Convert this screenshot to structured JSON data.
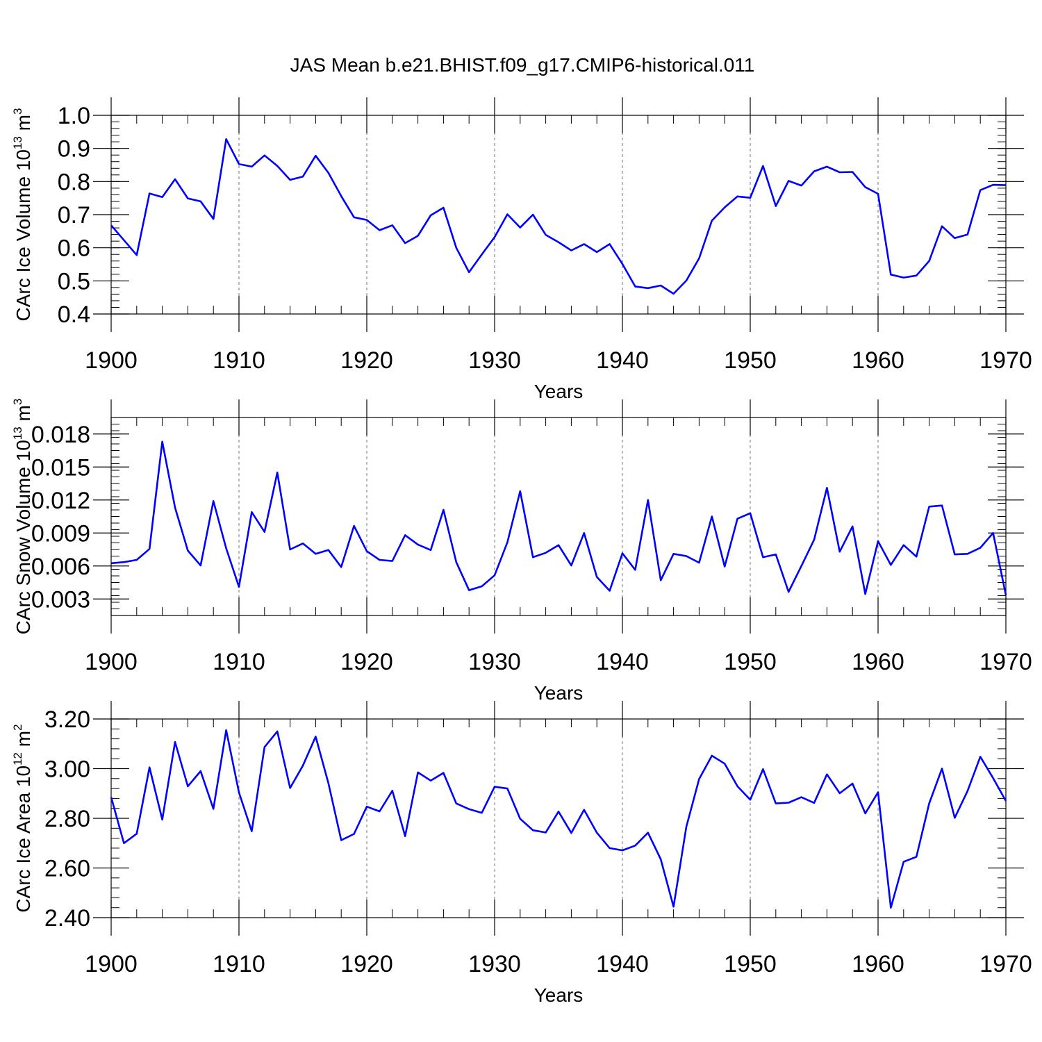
{
  "title": "JAS Mean b.e21.BHIST.f09_g17.CMIP6-historical.011",
  "colors": {
    "line": "#0000ff",
    "axis": "#000000",
    "grid": "#000000"
  },
  "chart_data": [
    {
      "type": "line",
      "xlabel": "Years",
      "ylabel": {
        "text": "CArc Ice Volume 10",
        "exp": "13",
        "unit": " m",
        "unit_exp": "3"
      },
      "xlim": [
        1900,
        1970
      ],
      "ylim": [
        0.4,
        1.0
      ],
      "xticks": [
        1900,
        1910,
        1920,
        1930,
        1940,
        1950,
        1960,
        1970
      ],
      "xtick_labels": [
        "1900",
        "1910",
        "1920",
        "1930",
        "1940",
        "1950",
        "1960",
        "1970"
      ],
      "yticks": [
        0.4,
        0.5,
        0.6,
        0.7,
        0.8,
        0.9,
        1.0
      ],
      "ytick_labels": [
        "0.4",
        "0.5",
        "0.6",
        "0.7",
        "0.8",
        "0.9",
        "1.0"
      ],
      "grid": "vertical dashed at decades",
      "x_start": 1900,
      "values": [
        0.668,
        0.623,
        0.578,
        0.764,
        0.753,
        0.807,
        0.749,
        0.74,
        0.687,
        0.928,
        0.853,
        0.845,
        0.879,
        0.847,
        0.805,
        0.815,
        0.878,
        0.826,
        0.756,
        0.692,
        0.684,
        0.653,
        0.668,
        0.614,
        0.636,
        0.698,
        0.721,
        0.6,
        0.526,
        0.58,
        0.632,
        0.701,
        0.661,
        0.7,
        0.639,
        0.617,
        0.592,
        0.611,
        0.587,
        0.611,
        0.551,
        0.483,
        0.478,
        0.486,
        0.461,
        0.501,
        0.568,
        0.682,
        0.722,
        0.755,
        0.751,
        0.847,
        0.726,
        0.802,
        0.788,
        0.831,
        0.845,
        0.828,
        0.829,
        0.783,
        0.763,
        0.519,
        0.51,
        0.516,
        0.56,
        0.665,
        0.629,
        0.64,
        0.774,
        0.79,
        0.789
      ]
    },
    {
      "type": "line",
      "xlabel": "Years",
      "ylabel": {
        "text": "CArc Snow Volume 10",
        "exp": "13",
        "unit": " m",
        "unit_exp": "3"
      },
      "xlim": [
        1900,
        1970
      ],
      "ylim": [
        0.0015,
        0.0195
      ],
      "xticks": [
        1900,
        1910,
        1920,
        1930,
        1940,
        1950,
        1960,
        1970
      ],
      "xtick_labels": [
        "1900",
        "1910",
        "1920",
        "1930",
        "1940",
        "1950",
        "1960",
        "1970"
      ],
      "yticks": [
        0.003,
        0.006,
        0.009,
        0.012,
        0.015,
        0.018
      ],
      "ytick_labels": [
        "0.003",
        "0.006",
        "0.009",
        "0.012",
        "0.015",
        "0.018"
      ],
      "grid": "vertical dashed at decades",
      "x_start": 1900,
      "values": [
        0.00625,
        0.00635,
        0.00655,
        0.00755,
        0.0173,
        0.0113,
        0.0074,
        0.00605,
        0.0119,
        0.0076,
        0.0041,
        0.0109,
        0.0091,
        0.0145,
        0.0075,
        0.00805,
        0.0071,
        0.00745,
        0.0059,
        0.00965,
        0.00735,
        0.00655,
        0.00645,
        0.0088,
        0.00795,
        0.00745,
        0.0111,
        0.00635,
        0.0038,
        0.00415,
        0.00515,
        0.00815,
        0.0128,
        0.0068,
        0.0072,
        0.0079,
        0.00605,
        0.009,
        0.005,
        0.00375,
        0.00715,
        0.00565,
        0.012,
        0.0047,
        0.0071,
        0.0069,
        0.0063,
        0.0105,
        0.00595,
        0.0103,
        0.0108,
        0.0068,
        0.00705,
        0.00365,
        0.006,
        0.0084,
        0.0131,
        0.0073,
        0.0096,
        0.00345,
        0.00825,
        0.0061,
        0.0079,
        0.00685,
        0.0114,
        0.0115,
        0.00705,
        0.0071,
        0.00765,
        0.009,
        0.00335
      ]
    },
    {
      "type": "line",
      "xlabel": "Years",
      "ylabel": {
        "text": "CArc Ice Area 10",
        "exp": "12",
        "unit": " m",
        "unit_exp": "2"
      },
      "xlim": [
        1900,
        1970
      ],
      "ylim": [
        2.4,
        3.2
      ],
      "xticks": [
        1900,
        1910,
        1920,
        1930,
        1940,
        1950,
        1960,
        1970
      ],
      "xtick_labels": [
        "1900",
        "1910",
        "1920",
        "1930",
        "1940",
        "1950",
        "1960",
        "1970"
      ],
      "yticks": [
        2.4,
        2.6,
        2.8,
        3.0,
        3.2
      ],
      "ytick_labels": [
        "2.40",
        "2.60",
        "2.80",
        "3.00",
        "3.20"
      ],
      "grid": "vertical dashed at decades",
      "x_start": 1900,
      "values": [
        2.885,
        2.7,
        2.738,
        3.005,
        2.795,
        3.107,
        2.929,
        2.99,
        2.838,
        3.155,
        2.904,
        2.748,
        3.087,
        3.15,
        2.922,
        3.012,
        3.129,
        2.941,
        2.712,
        2.737,
        2.847,
        2.828,
        2.911,
        2.728,
        2.985,
        2.952,
        2.983,
        2.86,
        2.837,
        2.822,
        2.927,
        2.92,
        2.798,
        2.752,
        2.743,
        2.827,
        2.741,
        2.834,
        2.742,
        2.68,
        2.671,
        2.69,
        2.742,
        2.635,
        2.444,
        2.766,
        2.958,
        3.052,
        3.02,
        2.929,
        2.875,
        2.998,
        2.86,
        2.863,
        2.885,
        2.862,
        2.977,
        2.901,
        2.94,
        2.82,
        2.905,
        2.44,
        2.625,
        2.645,
        2.86,
        3.0,
        2.802,
        2.91,
        3.048,
        2.962,
        2.87
      ]
    }
  ]
}
